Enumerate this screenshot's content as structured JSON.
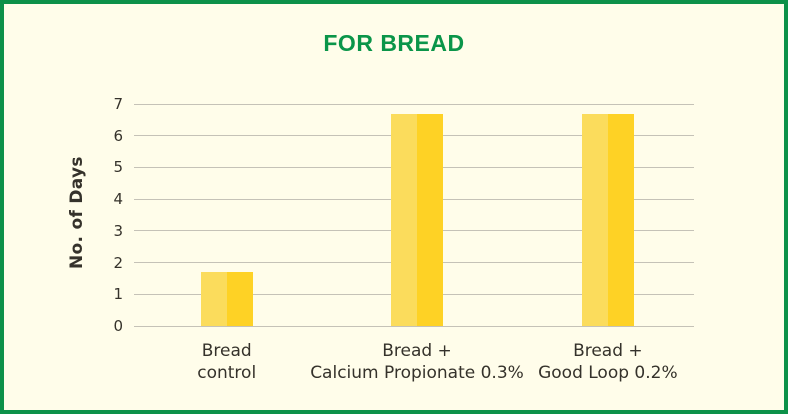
{
  "page": {
    "background": "#FFFDEA",
    "border_color": "#0D9149"
  },
  "colors": {
    "title_green": "#0A9549",
    "bar_light": "#FBDC5C",
    "bar_dark": "#FED225",
    "gridline": "#C5C2B7",
    "text_dark": "#35322B"
  },
  "chart_data": {
    "type": "bar",
    "title": "FOR BREAD",
    "xlabel": "",
    "ylabel": "No. of Days",
    "categories": [
      "Bread control",
      "Bread + Calcium Propionate 0.3%",
      "Bread + Good Loop 0.2%"
    ],
    "category_lines": [
      [
        "Bread",
        "control"
      ],
      [
        "Bread +",
        "Calcium Propionate 0.3%"
      ],
      [
        "Bread +",
        "Good Loop 0.2%"
      ]
    ],
    "values": [
      1.7,
      6.7,
      6.7
    ],
    "ylim": [
      0,
      7
    ],
    "yticks": [
      0,
      1,
      2,
      3,
      4,
      5,
      6,
      7
    ],
    "grid": true,
    "legend": false
  }
}
